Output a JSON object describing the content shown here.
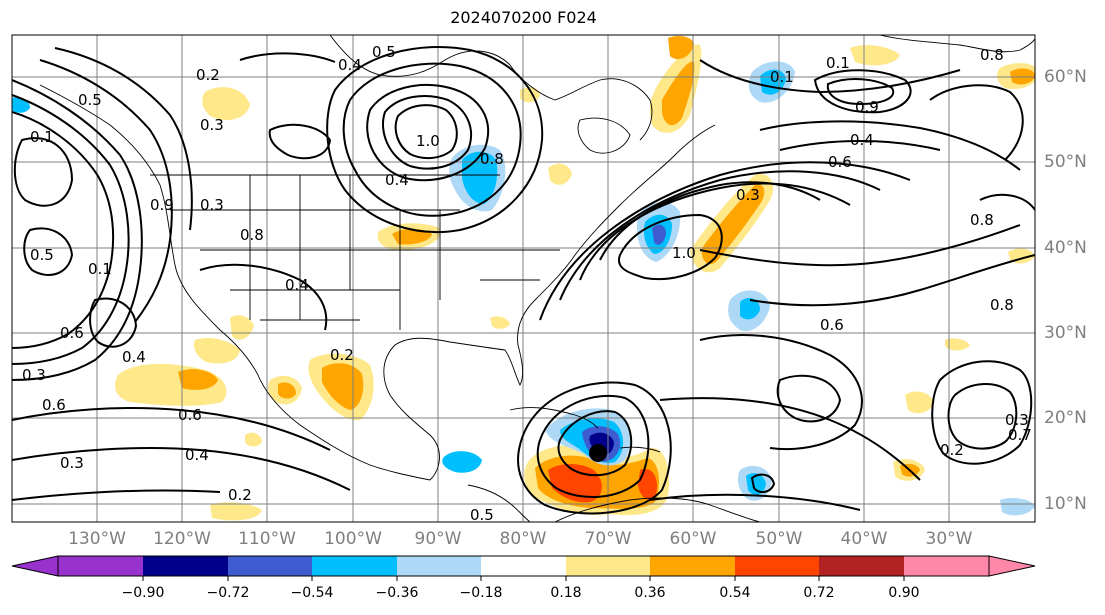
{
  "title": "2024070200 F024",
  "map": {
    "extent": {
      "lon_min": -140,
      "lon_max": -20,
      "lat_min": 8,
      "lat_max": 65
    },
    "lon_labels": [
      "130°W",
      "120°W",
      "110°W",
      "100°W",
      "90°W",
      "80°W",
      "70°W",
      "60°W",
      "50°W",
      "40°W",
      "30°W"
    ],
    "lat_labels": [
      "60°N",
      "50°N",
      "40°N",
      "30°N",
      "20°N",
      "10°N"
    ],
    "contour_labels": [
      "0.5",
      "0.4",
      "0.2",
      "0.3",
      "0.5",
      "0.1",
      "1.0",
      "0.8",
      "0.4",
      "0.5",
      "0.1",
      "0.9",
      "0.3",
      "0.2",
      "0.4",
      "0.6",
      "0.8",
      "0.4",
      "0.6",
      "0.3",
      "0.4",
      "0.2",
      "0.6",
      "0.3",
      "1.0",
      "0.1",
      "0.9",
      "0.6",
      "0.8",
      "0.4",
      "0.7",
      "0.8",
      "0.6",
      "0.3",
      "0.1",
      "0.5",
      "0.8",
      "0.3",
      "0.2"
    ],
    "colors": {
      "coast": "#000000",
      "grid": "#7f7f7f",
      "contour": "#000000"
    }
  },
  "colorbar": {
    "ticks": [
      "−0.90",
      "−0.72",
      "−0.54",
      "−0.36",
      "−0.18",
      "0.18",
      "0.36",
      "0.54",
      "0.72",
      "0.90"
    ],
    "colors": [
      "#9932cc",
      "#00008b",
      "#3f5bd0",
      "#00bfff",
      "#add8f6",
      "#ffffff",
      "#fee88a",
      "#ffa500",
      "#ff4500",
      "#b22222",
      "#ff88aa"
    ]
  }
}
